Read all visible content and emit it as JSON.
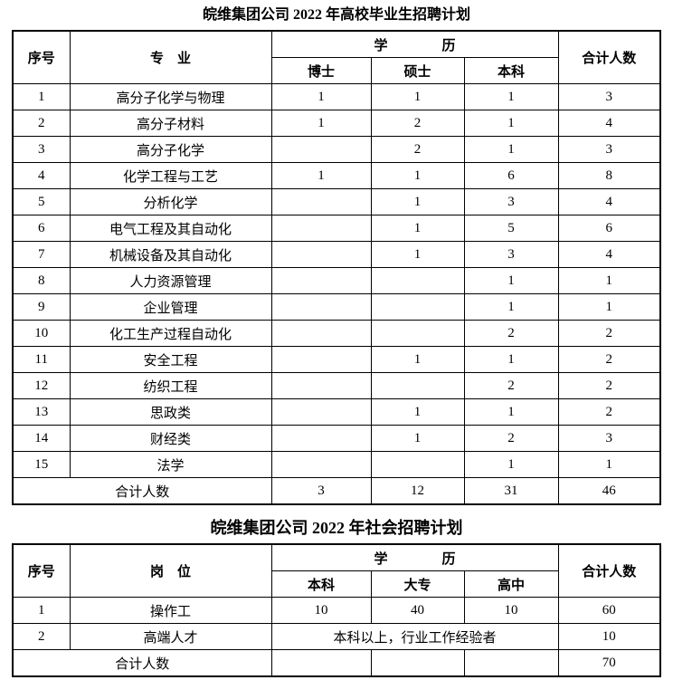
{
  "colors": {
    "background": "#ffffff",
    "text": "#000000",
    "border": "#000000"
  },
  "table1": {
    "title": "皖维集团公司 2022 年高校毕业生招聘计划",
    "headers": {
      "col_index": "序号",
      "col_major": "专　业",
      "col_education": "学　　　　历",
      "col_total": "合计人数",
      "sub_columns": [
        "博士",
        "硕士",
        "本科"
      ]
    },
    "rows": [
      {
        "index": "1",
        "label": "高分子化学与物理",
        "values": [
          "1",
          "1",
          "1"
        ],
        "total": "3"
      },
      {
        "index": "2",
        "label": "高分子材料",
        "values": [
          "1",
          "2",
          "1"
        ],
        "total": "4"
      },
      {
        "index": "3",
        "label": "高分子化学",
        "values": [
          "",
          "2",
          "1"
        ],
        "total": "3"
      },
      {
        "index": "4",
        "label": "化学工程与工艺",
        "values": [
          "1",
          "1",
          "6"
        ],
        "total": "8"
      },
      {
        "index": "5",
        "label": "分析化学",
        "values": [
          "",
          "1",
          "3"
        ],
        "total": "4"
      },
      {
        "index": "6",
        "label": "电气工程及其自动化",
        "values": [
          "",
          "1",
          "5"
        ],
        "total": "6"
      },
      {
        "index": "7",
        "label": "机械设备及其自动化",
        "values": [
          "",
          "1",
          "3"
        ],
        "total": "4"
      },
      {
        "index": "8",
        "label": "人力资源管理",
        "values": [
          "",
          "",
          "1"
        ],
        "total": "1"
      },
      {
        "index": "9",
        "label": "企业管理",
        "values": [
          "",
          "",
          "1"
        ],
        "total": "1"
      },
      {
        "index": "10",
        "label": "化工生产过程自动化",
        "values": [
          "",
          "",
          "2"
        ],
        "total": "2"
      },
      {
        "index": "11",
        "label": "安全工程",
        "values": [
          "",
          "1",
          "1"
        ],
        "total": "2"
      },
      {
        "index": "12",
        "label": "纺织工程",
        "values": [
          "",
          "",
          "2"
        ],
        "total": "2"
      },
      {
        "index": "13",
        "label": "思政类",
        "values": [
          "",
          "1",
          "1"
        ],
        "total": "2"
      },
      {
        "index": "14",
        "label": "财经类",
        "values": [
          "",
          "1",
          "2"
        ],
        "total": "3"
      },
      {
        "index": "15",
        "label": "法学",
        "values": [
          "",
          "",
          "1"
        ],
        "total": "1"
      }
    ],
    "total_row": {
      "label": "合计人数",
      "values": [
        "3",
        "12",
        "31"
      ],
      "total": "46"
    }
  },
  "table2": {
    "title": "皖维集团公司 2022 年社会招聘计划",
    "headers": {
      "col_index": "序号",
      "col_major": "岗　位",
      "col_education": "学　　　　历",
      "col_total": "合计人数",
      "sub_columns": [
        "本科",
        "大专",
        "高中"
      ]
    },
    "rows": [
      {
        "index": "1",
        "label": "操作工",
        "values": [
          "10",
          "40",
          "10"
        ],
        "total": "60"
      },
      {
        "index": "2",
        "label": "高端人才",
        "merged_text": "本科以上，行业工作经验者",
        "total": "10"
      }
    ],
    "total_row": {
      "label": "合计人数",
      "values": [
        "",
        "",
        ""
      ],
      "total": "70"
    }
  }
}
